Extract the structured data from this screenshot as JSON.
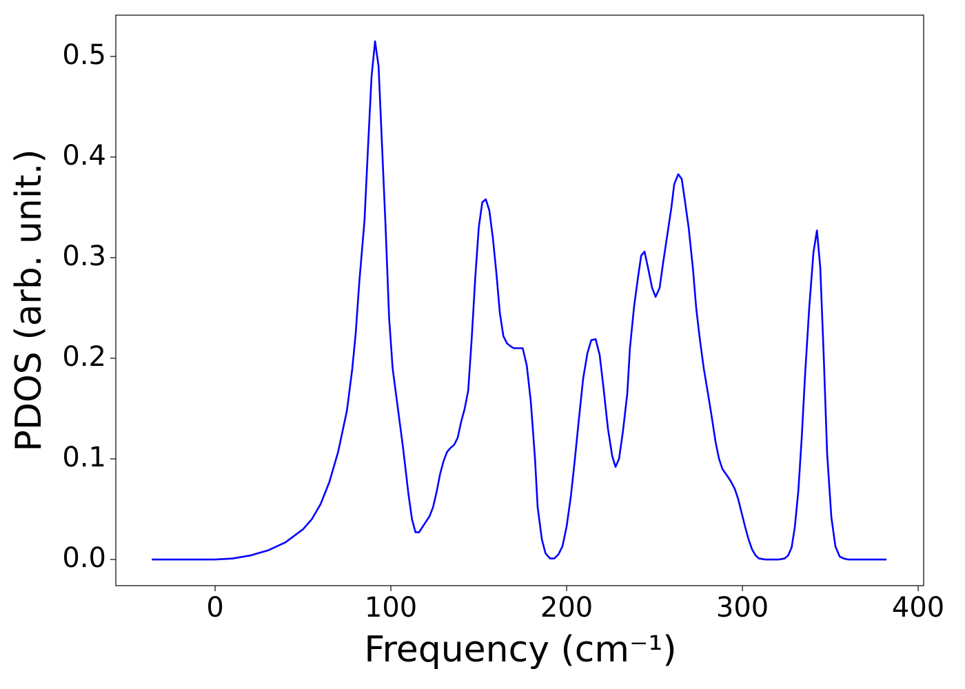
{
  "chart_data": {
    "type": "line",
    "xlabel": "Frequency (cm⁻¹)",
    "ylabel": "PDOS (arb. unit.)",
    "xlim": [
      -56.5,
      403.1
    ],
    "ylim": [
      -0.026,
      0.541
    ],
    "xticks": [
      0,
      100,
      200,
      300,
      400
    ],
    "yticks": [
      {
        "value": 0,
        "label": "0.0"
      },
      0.1,
      0.2,
      0.3,
      0.4,
      0.5
    ],
    "series": [
      {
        "color": "#0000ff",
        "x": [
          -36,
          -20,
          0,
          10,
          20,
          30,
          40,
          50,
          55,
          60,
          65,
          70,
          75,
          78,
          80,
          82,
          85,
          87,
          89,
          91,
          93,
          95,
          97,
          99,
          101,
          104,
          107,
          110,
          112,
          114,
          116,
          119,
          122,
          124,
          126,
          128,
          130,
          132,
          134,
          136,
          138,
          140,
          142,
          144,
          146,
          148,
          150,
          152,
          154,
          156,
          158,
          160,
          162,
          164,
          166,
          168,
          170,
          172,
          175,
          177.3,
          179.6,
          182,
          183.5,
          185.9,
          188,
          190.6,
          193,
          195.3,
          197.6,
          200,
          202.4,
          204.7,
          207,
          209.4,
          211.8,
          214,
          216.5,
          218.8,
          221,
          223.5,
          225.9,
          227.8,
          229.8,
          232,
          234.5,
          236,
          238.4,
          240.8,
          242.4,
          244.3,
          246.3,
          248.6,
          250.6,
          252.9,
          254.9,
          257.3,
          259.6,
          261.2,
          263.5,
          265.5,
          267,
          269.4,
          271.8,
          273.7,
          275.7,
          278,
          280.4,
          282.7,
          284.7,
          286.7,
          288.6,
          291,
          293.3,
          295.7,
          297.6,
          299.6,
          301.6,
          303.5,
          305.5,
          307.5,
          309.4,
          313,
          320.8,
          324,
          326,
          328,
          329.8,
          331.8,
          333.7,
          335.7,
          338,
          340.4,
          342.4,
          344.3,
          346.3,
          348.2,
          350.6,
          352.9,
          355.3,
          357.6,
          360,
          382
        ],
        "values": [
          0,
          0,
          0,
          0.001,
          0.004,
          0.009,
          0.017,
          0.03,
          0.04,
          0.055,
          0.077,
          0.107,
          0.148,
          0.189,
          0.225,
          0.275,
          0.337,
          0.41,
          0.48,
          0.515,
          0.49,
          0.41,
          0.33,
          0.24,
          0.19,
          0.15,
          0.11,
          0.065,
          0.04,
          0.027,
          0.027,
          0.035,
          0.043,
          0.052,
          0.067,
          0.085,
          0.098,
          0.107,
          0.111,
          0.114,
          0.121,
          0.137,
          0.15,
          0.168,
          0.22,
          0.28,
          0.33,
          0.355,
          0.358,
          0.347,
          0.32,
          0.285,
          0.245,
          0.222,
          0.215,
          0.212,
          0.21,
          0.21,
          0.21,
          0.193,
          0.157,
          0.1,
          0.052,
          0.02,
          0.006,
          0.001,
          0.001,
          0.005,
          0.013,
          0.033,
          0.063,
          0.1,
          0.14,
          0.18,
          0.205,
          0.218,
          0.219,
          0.203,
          0.17,
          0.13,
          0.103,
          0.092,
          0.1,
          0.127,
          0.165,
          0.21,
          0.252,
          0.283,
          0.302,
          0.306,
          0.29,
          0.27,
          0.261,
          0.27,
          0.295,
          0.323,
          0.35,
          0.373,
          0.383,
          0.378,
          0.36,
          0.33,
          0.29,
          0.25,
          0.22,
          0.19,
          0.165,
          0.14,
          0.117,
          0.1,
          0.09,
          0.084,
          0.078,
          0.07,
          0.06,
          0.046,
          0.032,
          0.02,
          0.01,
          0.004,
          0.001,
          0,
          0,
          0.001,
          0.004,
          0.012,
          0.032,
          0.068,
          0.12,
          0.185,
          0.25,
          0.305,
          0.327,
          0.29,
          0.2,
          0.105,
          0.042,
          0.013,
          0.003,
          0.001,
          0,
          0
        ]
      }
    ]
  }
}
